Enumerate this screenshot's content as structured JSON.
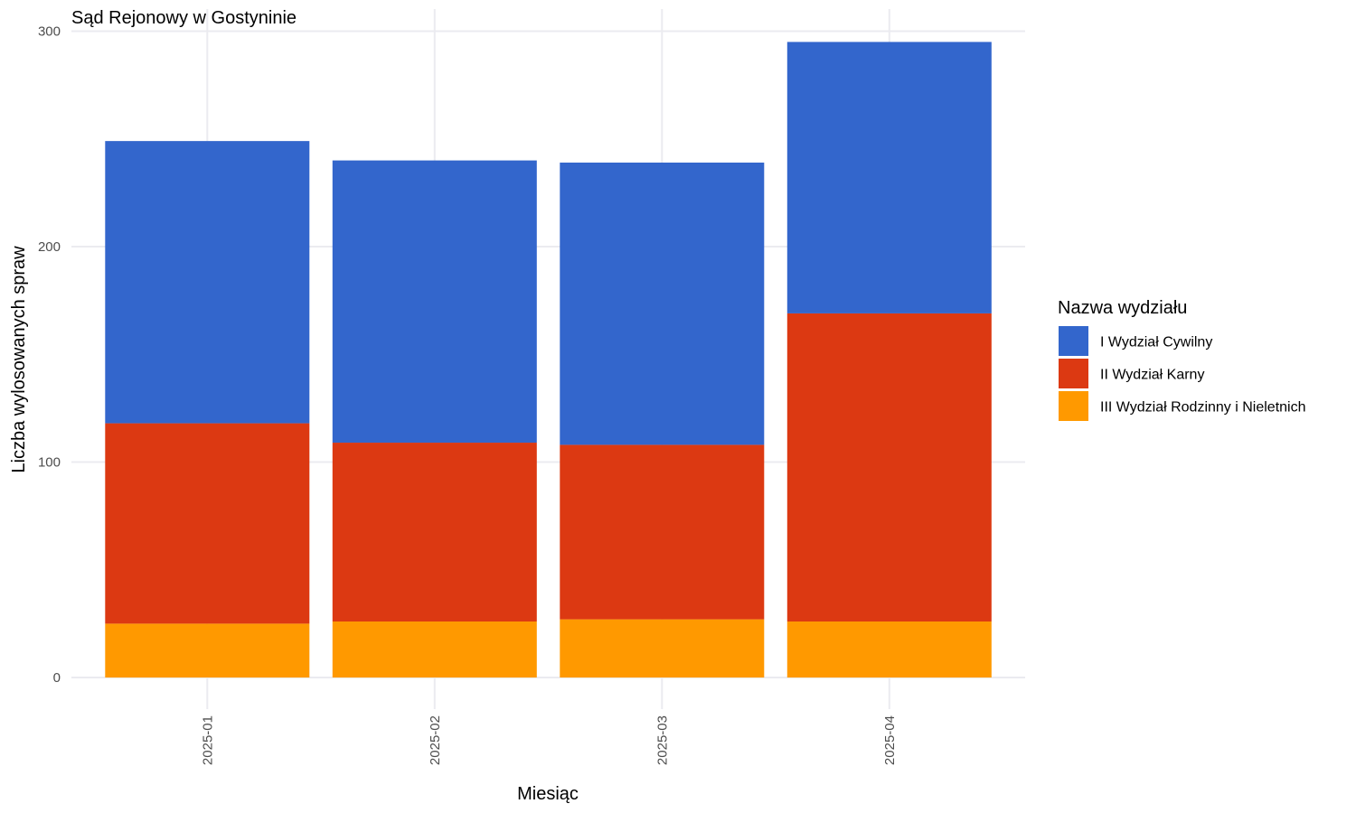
{
  "chart_data": {
    "type": "bar",
    "stacked": true,
    "title": "Sąd Rejonowy w Gostyninie",
    "xlabel": "Miesiąc",
    "ylabel": "Liczba wylosowanych spraw",
    "categories": [
      "2025-01",
      "2025-02",
      "2025-03",
      "2025-04"
    ],
    "yticks": [
      0,
      100,
      200,
      300
    ],
    "ytick_labels": [
      "0",
      "100",
      "200",
      "300"
    ],
    "ylim": [
      0,
      300
    ],
    "grid": true,
    "legend": {
      "title": "Nazwa wydziału",
      "position": "right"
    },
    "series": [
      {
        "name": "I Wydział Cywilny",
        "color": "#3366cc",
        "values": [
          131,
          131,
          131,
          126
        ]
      },
      {
        "name": "II Wydział Karny",
        "color": "#dc3912",
        "values": [
          93,
          83,
          81,
          143
        ]
      },
      {
        "name": "III Wydział Rodzinny i Nieletnich",
        "color": "#ff9900",
        "values": [
          25,
          26,
          27,
          26
        ]
      }
    ]
  }
}
